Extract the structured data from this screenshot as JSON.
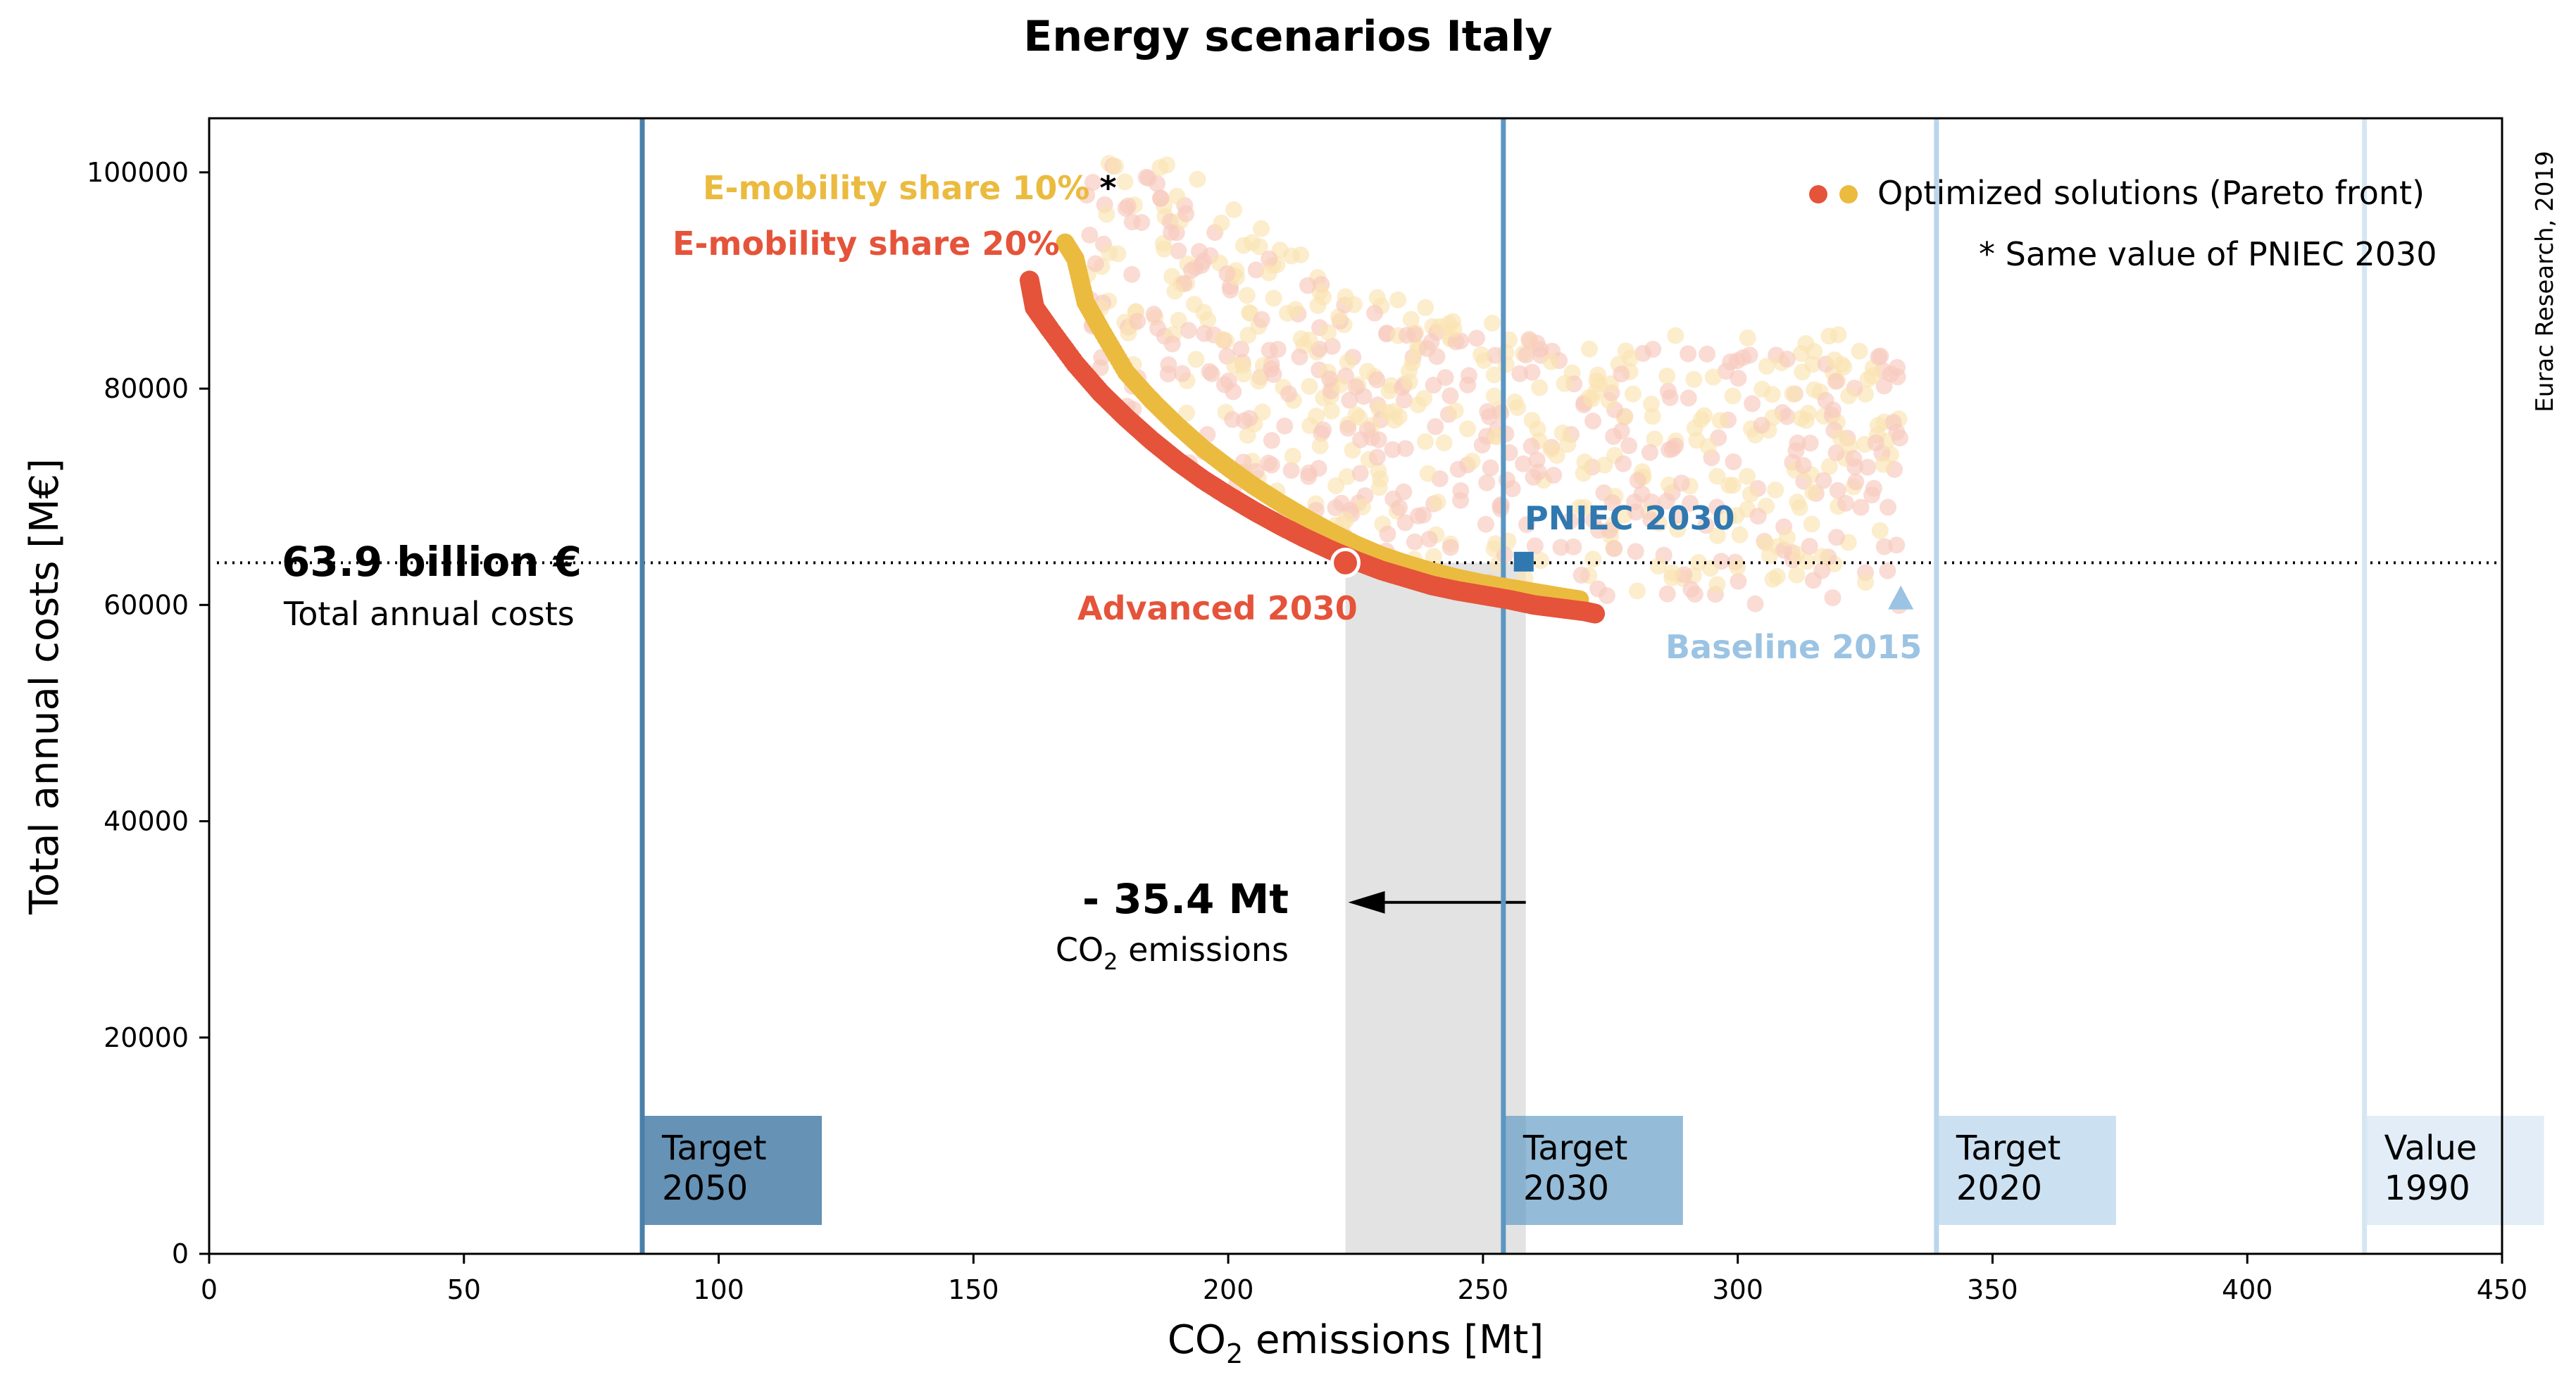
{
  "chart_data": {
    "type": "scatter",
    "title": "Energy scenarios Italy",
    "xlabel": "CO",
    "xlabel_sub": "2",
    "xlabel_suffix": " emissions [Mt]",
    "ylabel": "Total annual costs [M€]",
    "xlim": [
      0,
      450
    ],
    "ylim": [
      0,
      100000
    ],
    "x_ticks": [
      0,
      50,
      100,
      150,
      200,
      250,
      300,
      350,
      400,
      450
    ],
    "y_ticks": [
      0,
      20000,
      40000,
      60000,
      80000,
      100000
    ],
    "credit": "Eurac Research, 2019",
    "colors": {
      "pareto_20": "#e5533a",
      "pareto_10": "#ebbb3f",
      "cloud_20": "#f8c9bd",
      "cloud_10": "#fbe4b2",
      "target_dark": "#4a7fa8",
      "target_mid": "#5b96c2",
      "target_light": "#b9d6ec",
      "target_vlight": "#d5e6f3",
      "pniec": "#2f78b0",
      "baseline": "#9bc3e3",
      "grey_band": "#e3e3e3"
    },
    "series": [
      {
        "name": "E-mobility share 20%",
        "points": [
          [
            161,
            90000
          ],
          [
            162,
            87500
          ],
          [
            165,
            85500
          ],
          [
            170,
            82300
          ],
          [
            175,
            79600
          ],
          [
            180,
            77300
          ],
          [
            185,
            75200
          ],
          [
            190,
            73300
          ],
          [
            195,
            71600
          ],
          [
            200,
            70100
          ],
          [
            205,
            68700
          ],
          [
            210,
            67400
          ],
          [
            215,
            66200
          ],
          [
            220,
            65100
          ],
          [
            225,
            64100
          ],
          [
            230,
            63200
          ],
          [
            235,
            62500
          ],
          [
            240,
            61800
          ],
          [
            245,
            61300
          ],
          [
            250,
            60900
          ],
          [
            255,
            60500
          ],
          [
            260,
            60000
          ],
          [
            265,
            59700
          ],
          [
            270,
            59400
          ],
          [
            272,
            59200
          ]
        ]
      },
      {
        "name": "E-mobility share 10%",
        "points": [
          [
            168,
            93500
          ],
          [
            170,
            92000
          ],
          [
            172,
            88000
          ],
          [
            175,
            85500
          ],
          [
            180,
            81500
          ],
          [
            185,
            78900
          ],
          [
            190,
            76600
          ],
          [
            195,
            74500
          ],
          [
            200,
            72700
          ],
          [
            205,
            71000
          ],
          [
            210,
            69500
          ],
          [
            215,
            68100
          ],
          [
            220,
            66800
          ],
          [
            225,
            65600
          ],
          [
            230,
            64600
          ],
          [
            235,
            63800
          ],
          [
            240,
            63100
          ],
          [
            245,
            62500
          ],
          [
            250,
            62000
          ],
          [
            255,
            61600
          ],
          [
            260,
            61200
          ],
          [
            265,
            60800
          ],
          [
            269,
            60500
          ]
        ]
      }
    ],
    "targets": [
      {
        "label_line1": "Target",
        "label_line2": "2050",
        "x": 85
      },
      {
        "label_line1": "Target",
        "label_line2": "2030",
        "x": 254
      },
      {
        "label_line1": "Target",
        "label_line2": "2020",
        "x": 339
      },
      {
        "label_line1": "Value",
        "label_line2": "1990",
        "x": 423
      }
    ],
    "markers": {
      "pniec": {
        "label": "PNIEC 2030",
        "x": 258,
        "y": 64000
      },
      "baseline": {
        "label": "Baseline 2015",
        "x": 332,
        "y": 60500
      },
      "advanced": {
        "label": "Advanced 2030",
        "x": 223,
        "y": 63900
      }
    },
    "reference_line": {
      "y": 63900,
      "value_label": "63.9 billion €",
      "sub_label": "Total annual costs"
    },
    "reduction": {
      "label": "- 35.4 Mt",
      "sub_label_prefix": "CO",
      "sub_label_sub": "2",
      "sub_label_suffix": " emissions",
      "band_from": 223,
      "band_to": 258.4
    },
    "legend": {
      "entry": "Optimized solutions (Pareto front)",
      "note": "* Same value of PNIEC 2030",
      "position": "top-right"
    },
    "series_labels": {
      "label_10": "E-mobility share 10%",
      "asterisk": "*",
      "label_20": "E-mobility share 20%"
    }
  }
}
